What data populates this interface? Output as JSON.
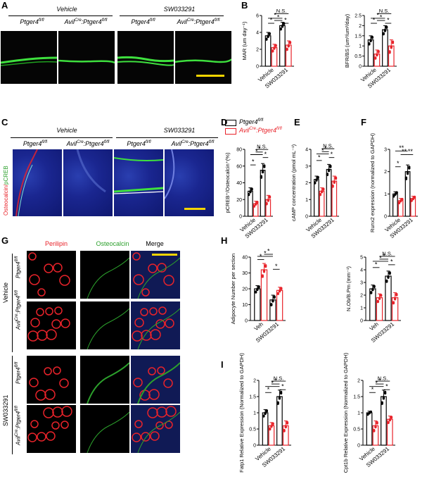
{
  "panels": {
    "A": "A",
    "B": "B",
    "C": "C",
    "D": "D",
    "E": "E",
    "F": "F",
    "G": "G",
    "H": "H",
    "I": "I"
  },
  "panelA": {
    "groups": [
      "Vehicle",
      "SW033291"
    ],
    "genotypes": [
      "Ptger4",
      "Avil",
      "Cre",
      ":Ptger4",
      "fl/fl"
    ]
  },
  "panelC": {
    "groups": [
      "Vehicle",
      "SW033291"
    ],
    "side_label_red": "Osteocalcin/",
    "side_label_green": "pCREB"
  },
  "legend": {
    "ctrl": "Ptger4",
    "ctrl_sup": "fl/fl",
    "ko_pre": "Avil",
    "ko_cre": "Cre",
    "ko_mid": ":Ptger4",
    "ko_sup": "fl/fl",
    "colors": {
      "ctrl": "#000000",
      "ko": "#e8232a"
    }
  },
  "panelG": {
    "channels": [
      "Perilipin",
      "Osteocalcin",
      "Merge"
    ],
    "groups": [
      "Vehicle",
      "SW033291"
    ],
    "channel_colors": [
      "#e8232a",
      "#2ca02c",
      "#000000"
    ]
  },
  "sig": {
    "star": "*",
    "dstar": "**",
    "ns": "N.S."
  },
  "chart_data": [
    {
      "panel": "B",
      "type": "bar",
      "ylabel": "MAR (um day⁻¹)",
      "ylim": [
        0,
        6
      ],
      "yticks": [
        0,
        2,
        4,
        6
      ],
      "categories": [
        "Vehicle",
        "SW033291"
      ],
      "series": [
        {
          "name": "Ptger4 fl/fl",
          "values": [
            3.6,
            4.8
          ],
          "err": [
            0.4,
            0.4
          ]
        },
        {
          "name": "AvilCre:Ptger4 fl/fl",
          "values": [
            2.2,
            2.5
          ],
          "err": [
            0.4,
            0.5
          ]
        }
      ]
    },
    {
      "panel": "B",
      "type": "bar",
      "ylabel": "BFR/BS (um³/um²/day)",
      "ylim": [
        0,
        2.5
      ],
      "yticks": [
        0,
        0.5,
        1.0,
        1.5,
        2.0,
        2.5
      ],
      "categories": [
        "Vehicle",
        "SW033291"
      ],
      "series": [
        {
          "name": "Ptger4 fl/fl",
          "values": [
            1.3,
            1.8
          ],
          "err": [
            0.2,
            0.2
          ]
        },
        {
          "name": "AvilCre:Ptger4 fl/fl",
          "values": [
            0.6,
            1.0
          ],
          "err": [
            0.2,
            0.3
          ]
        }
      ]
    },
    {
      "panel": "D",
      "type": "bar",
      "ylabel": "pCREB⁺/Osteocalcin⁺(%)",
      "ylim": [
        0,
        80
      ],
      "yticks": [
        0,
        20,
        40,
        60,
        80
      ],
      "categories": [
        "Vehicle",
        "SW033291"
      ],
      "series": [
        {
          "name": "Ptger4 fl/fl",
          "values": [
            30,
            55
          ],
          "err": [
            4,
            8
          ]
        },
        {
          "name": "AvilCre:Ptger4 fl/fl",
          "values": [
            15,
            20
          ],
          "err": [
            3,
            5
          ]
        }
      ]
    },
    {
      "panel": "E",
      "type": "bar",
      "ylabel": "cAMP concentration (pmol mL⁻¹)",
      "ylim": [
        0,
        4
      ],
      "yticks": [
        0,
        1,
        2,
        3,
        4
      ],
      "categories": [
        "Vehicle",
        "SW033291"
      ],
      "series": [
        {
          "name": "Ptger4 fl/fl",
          "values": [
            2.2,
            2.8
          ],
          "err": [
            0.2,
            0.3
          ]
        },
        {
          "name": "AvilCre:Ptger4 fl/fl",
          "values": [
            1.5,
            2.1
          ],
          "err": [
            0.2,
            0.3
          ]
        }
      ]
    },
    {
      "panel": "F",
      "type": "bar",
      "ylabel": "Runx2 expression (normalized to GAPDH)",
      "ylim": [
        0,
        3
      ],
      "yticks": [
        0,
        1,
        2,
        3
      ],
      "categories": [
        "Vehicle",
        "SW033291"
      ],
      "series": [
        {
          "name": "Ptger4 fl/fl",
          "values": [
            1.0,
            2.0
          ],
          "err": [
            0.1,
            0.3
          ]
        },
        {
          "name": "AvilCre:Ptger4 fl/fl",
          "values": [
            0.7,
            0.8
          ],
          "err": [
            0.1,
            0.1
          ]
        }
      ]
    },
    {
      "panel": "H",
      "type": "bar",
      "ylabel": "Adipocyte Number per section",
      "ylim": [
        0,
        40
      ],
      "yticks": [
        0,
        10,
        20,
        30,
        40
      ],
      "categories": [
        "Veh",
        "SW033291"
      ],
      "series": [
        {
          "name": "Ptger4 fl/fl",
          "values": [
            20,
            13
          ],
          "err": [
            2,
            3
          ]
        },
        {
          "name": "AvilCre:Ptger4 fl/fl",
          "values": [
            32,
            19
          ],
          "err": [
            4,
            2
          ]
        }
      ]
    },
    {
      "panel": "H",
      "type": "bar",
      "ylabel": "N.Ob/B.Pm (mm⁻¹)",
      "ylim": [
        0,
        5
      ],
      "yticks": [
        0,
        1,
        2,
        3,
        4,
        5
      ],
      "categories": [
        "Veh",
        "SW033291"
      ],
      "series": [
        {
          "name": "Ptger4 fl/fl",
          "values": [
            2.5,
            3.5
          ],
          "err": [
            0.3,
            0.4
          ]
        },
        {
          "name": "AvilCre:Ptger4 fl/fl",
          "values": [
            1.8,
            1.8
          ],
          "err": [
            0.3,
            0.4
          ]
        }
      ]
    },
    {
      "panel": "I",
      "type": "bar",
      "ylabel": "Fatp1 Relative Expression (Normalized to GAPDH)",
      "ylim": [
        0,
        2.0
      ],
      "yticks": [
        0,
        0.5,
        1.0,
        1.5,
        2.0
      ],
      "categories": [
        "Vehicle",
        "SW033291"
      ],
      "series": [
        {
          "name": "Ptger4 fl/fl",
          "values": [
            1.0,
            1.5
          ],
          "err": [
            0.1,
            0.2
          ]
        },
        {
          "name": "AvilCre:Ptger4 fl/fl",
          "values": [
            0.6,
            0.6
          ],
          "err": [
            0.1,
            0.15
          ]
        }
      ]
    },
    {
      "panel": "I",
      "type": "bar",
      "ylabel": "Cpt1b Relative Expression (Normalized to GAPDH)",
      "ylim": [
        0,
        2.0
      ],
      "yticks": [
        0,
        0.5,
        1.0,
        1.5,
        2.0
      ],
      "categories": [
        "Vehicle",
        "SW033291"
      ],
      "series": [
        {
          "name": "Ptger4 fl/fl",
          "values": [
            1.0,
            1.5
          ],
          "err": [
            0.05,
            0.2
          ]
        },
        {
          "name": "AvilCre:Ptger4 fl/fl",
          "values": [
            0.6,
            0.8
          ],
          "err": [
            0.15,
            0.1
          ]
        }
      ]
    }
  ]
}
